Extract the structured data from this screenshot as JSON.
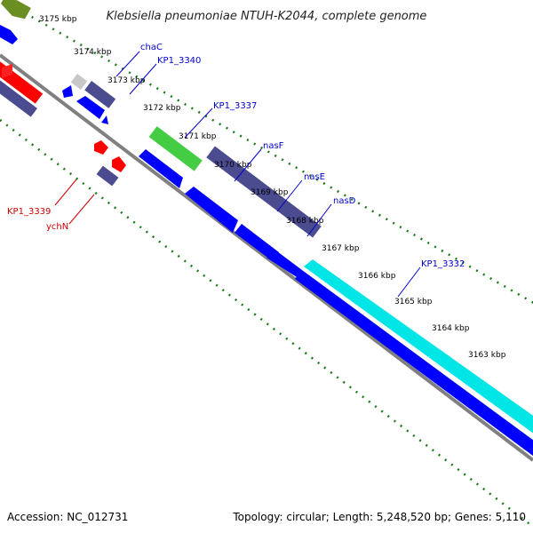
{
  "title": "Klebsiella pneumoniae NTUH-K2044, complete genome",
  "footer": {
    "accession": "Accession: NC_012731",
    "summary": "Topology: circular; Length: 5,248,520 bp; Genes: 5,110"
  },
  "ticks": [
    "3175 kbp",
    "3174 kbp",
    "3173 kbp",
    "3172 kbp",
    "3171 kbp",
    "3170 kbp",
    "3169 kbp",
    "3168 kbp",
    "3167 kbp",
    "3166 kbp",
    "3165 kbp",
    "3164 kbp",
    "3163 kbp"
  ],
  "gene_labels": {
    "chaC": "chaC",
    "kp1_3340": "KP1_3340",
    "kp1_3337": "KP1_3337",
    "nasF": "nasF",
    "nasE": "nasE",
    "nasD": "nasD",
    "kp1_3332": "KP1_3332",
    "kp1_3339": "KP1_3339",
    "ychN": "ychN"
  },
  "colors": {
    "backbone": "#808080",
    "ticks": "#1a7a1a",
    "cds_forward": "#0000ff",
    "cds_dark": "#4b4b8f",
    "cds_red": "#ff0000",
    "cds_green": "#44cc44",
    "cds_olive": "#6b8e23",
    "cds_cyan": "#00e5e5",
    "cds_grey": "#c8c8c8",
    "label_blue": "#0000cc",
    "label_red": "#cc0000"
  }
}
